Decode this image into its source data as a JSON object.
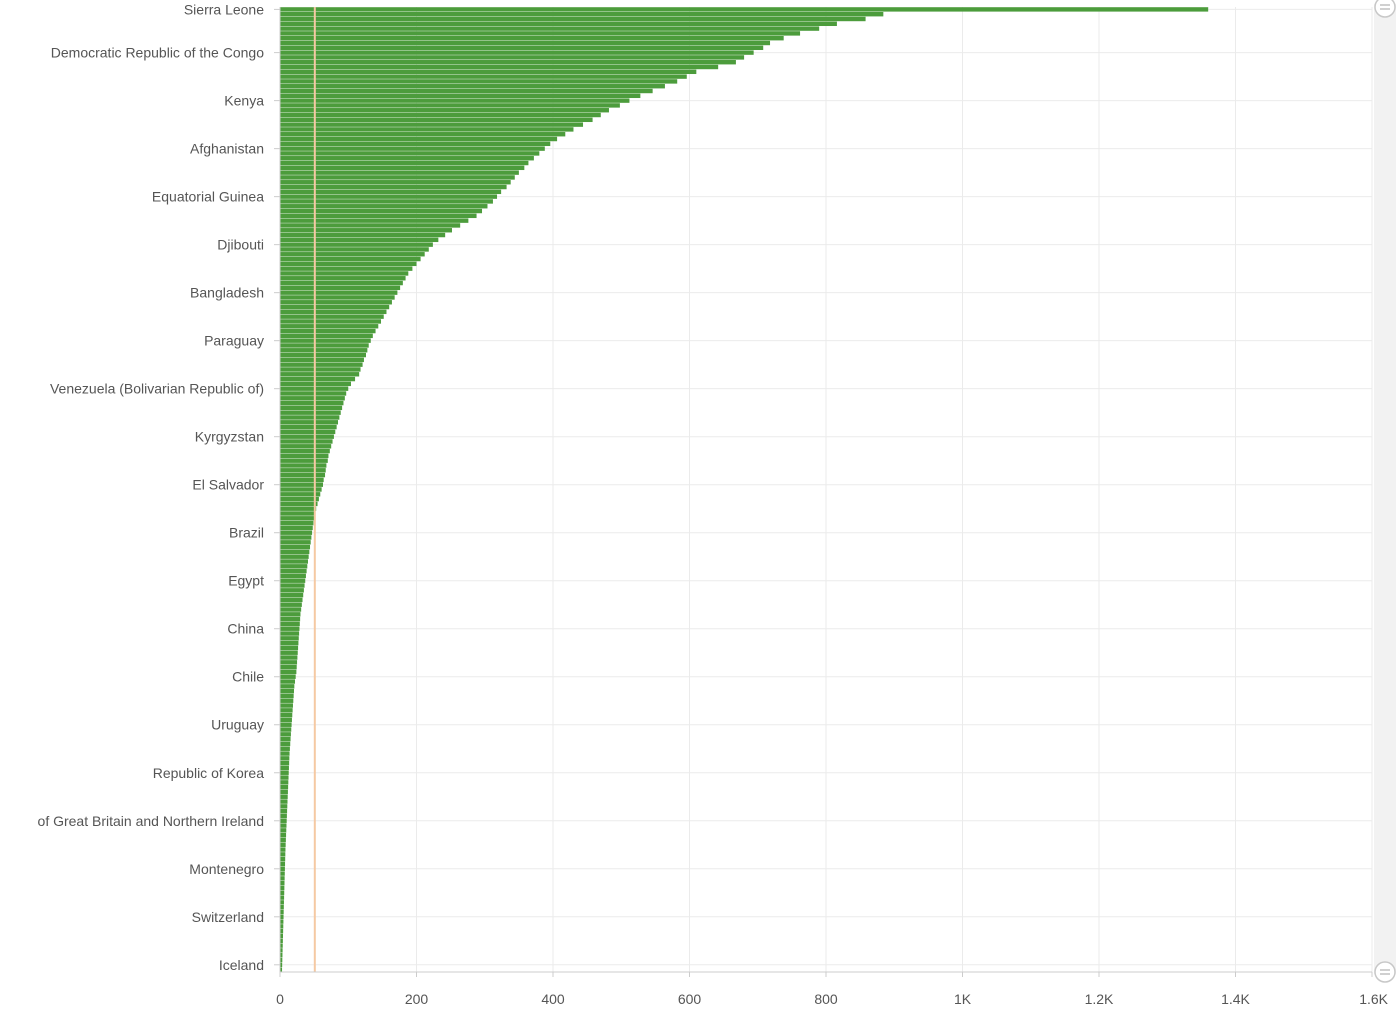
{
  "chart_data": {
    "type": "bar",
    "orientation": "horizontal",
    "title": "",
    "xlabel": "",
    "ylabel": "",
    "xlim": [
      0,
      1600
    ],
    "grid": true,
    "legend": "none",
    "bar_color": "#4c9c3c",
    "reference_line": {
      "value": 51,
      "color": "#f5c9a3"
    },
    "x_ticks": [
      {
        "value": 0,
        "label": "0"
      },
      {
        "value": 200,
        "label": "200"
      },
      {
        "value": 400,
        "label": "400"
      },
      {
        "value": 600,
        "label": "600"
      },
      {
        "value": 800,
        "label": "800"
      },
      {
        "value": 1000,
        "label": "1K"
      },
      {
        "value": 1200,
        "label": "1.2K"
      },
      {
        "value": 1400,
        "label": "1.4K"
      },
      {
        "value": 1600,
        "label": "1.6K"
      }
    ],
    "category_labels": [
      {
        "index": 0,
        "label": "Sierra Leone"
      },
      {
        "index": 9,
        "label": "Democratic Republic of the Congo"
      },
      {
        "index": 19,
        "label": "Kenya"
      },
      {
        "index": 29,
        "label": "Afghanistan"
      },
      {
        "index": 39,
        "label": "Equatorial Guinea"
      },
      {
        "index": 49,
        "label": "Djibouti"
      },
      {
        "index": 59,
        "label": "Bangladesh"
      },
      {
        "index": 69,
        "label": "Paraguay"
      },
      {
        "index": 79,
        "label": "Venezuela (Bolivarian Republic of)"
      },
      {
        "index": 89,
        "label": "Kyrgyzstan"
      },
      {
        "index": 99,
        "label": "El Salvador"
      },
      {
        "index": 109,
        "label": "Brazil"
      },
      {
        "index": 119,
        "label": "Egypt"
      },
      {
        "index": 129,
        "label": "China"
      },
      {
        "index": 139,
        "label": "Chile"
      },
      {
        "index": 149,
        "label": "Uruguay"
      },
      {
        "index": 159,
        "label": "Republic of Korea"
      },
      {
        "index": 169,
        "label": "of Great Britain and Northern Ireland"
      },
      {
        "index": 179,
        "label": "Montenegro"
      },
      {
        "index": 189,
        "label": "Switzerland"
      },
      {
        "index": 199,
        "label": "Iceland"
      }
    ],
    "values": [
      1360,
      884,
      858,
      816,
      790,
      762,
      738,
      718,
      708,
      694,
      680,
      668,
      642,
      610,
      596,
      582,
      564,
      546,
      528,
      512,
      498,
      482,
      470,
      458,
      444,
      430,
      418,
      406,
      396,
      388,
      380,
      372,
      364,
      358,
      350,
      344,
      338,
      332,
      324,
      318,
      312,
      304,
      296,
      288,
      276,
      264,
      252,
      242,
      232,
      224,
      218,
      212,
      206,
      200,
      194,
      188,
      184,
      180,
      176,
      172,
      168,
      164,
      160,
      156,
      152,
      148,
      144,
      140,
      136,
      133,
      130,
      128,
      126,
      123,
      121,
      118,
      116,
      110,
      104,
      100,
      97,
      95,
      93,
      91,
      89,
      87,
      85,
      83,
      81,
      79,
      77,
      75,
      73,
      71,
      70,
      68,
      67,
      66,
      64,
      63,
      61,
      59,
      57,
      55,
      53,
      52,
      50,
      49,
      48,
      47,
      46,
      45,
      44,
      43,
      42,
      41,
      40,
      39,
      38,
      37,
      36,
      35,
      34,
      33,
      32,
      31,
      30,
      29.5,
      29,
      28.5,
      28,
      27.5,
      27,
      26.5,
      26,
      25.5,
      25,
      24.5,
      24,
      23,
      22,
      21,
      20.5,
      20,
      19.5,
      19,
      18.5,
      18,
      17.5,
      17,
      16.5,
      16,
      15.5,
      15,
      14.5,
      14,
      13.7,
      13.4,
      13.1,
      12.8,
      12.5,
      12.2,
      11.9,
      11.6,
      11.3,
      11,
      10.7,
      10.4,
      10.1,
      9.8,
      9.5,
      9.2,
      8.9,
      8.6,
      8.3,
      8,
      7.8,
      7.6,
      7.4,
      7.2,
      7,
      6.8,
      6.6,
      6.4,
      6.2,
      6,
      5.8,
      5.6,
      5.4,
      5.2,
      5,
      4.8,
      4.6,
      4.4,
      4.2,
      4,
      3.8,
      3.6,
      3.4,
      3.2,
      3
    ]
  }
}
